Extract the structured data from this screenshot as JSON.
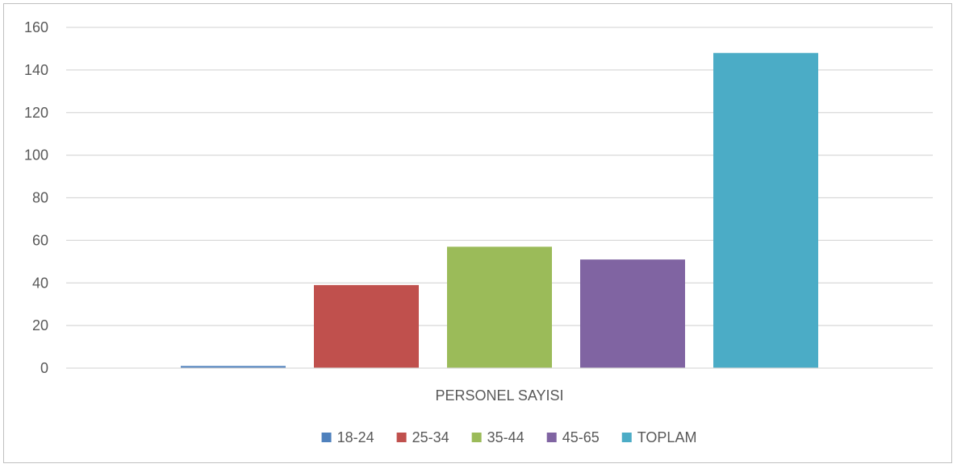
{
  "chart_data": {
    "type": "bar",
    "categories": [
      "PERSONEL SAYISI"
    ],
    "series": [
      {
        "name": "18-24",
        "values": [
          1
        ],
        "color": "#4f81bd"
      },
      {
        "name": "25-34",
        "values": [
          39
        ],
        "color": "#c0504d"
      },
      {
        "name": "35-44",
        "values": [
          57
        ],
        "color": "#9bbb59"
      },
      {
        "name": "45-65",
        "values": [
          51
        ],
        "color": "#8064a2"
      },
      {
        "name": "TOPLAM",
        "values": [
          148
        ],
        "color": "#4bacc6"
      }
    ],
    "yticks": [
      0,
      20,
      40,
      60,
      80,
      100,
      120,
      140,
      160
    ],
    "ylim": [
      0,
      160
    ],
    "grid": true,
    "legend": "bottom",
    "title": "",
    "xlabel": "",
    "ylabel": ""
  }
}
